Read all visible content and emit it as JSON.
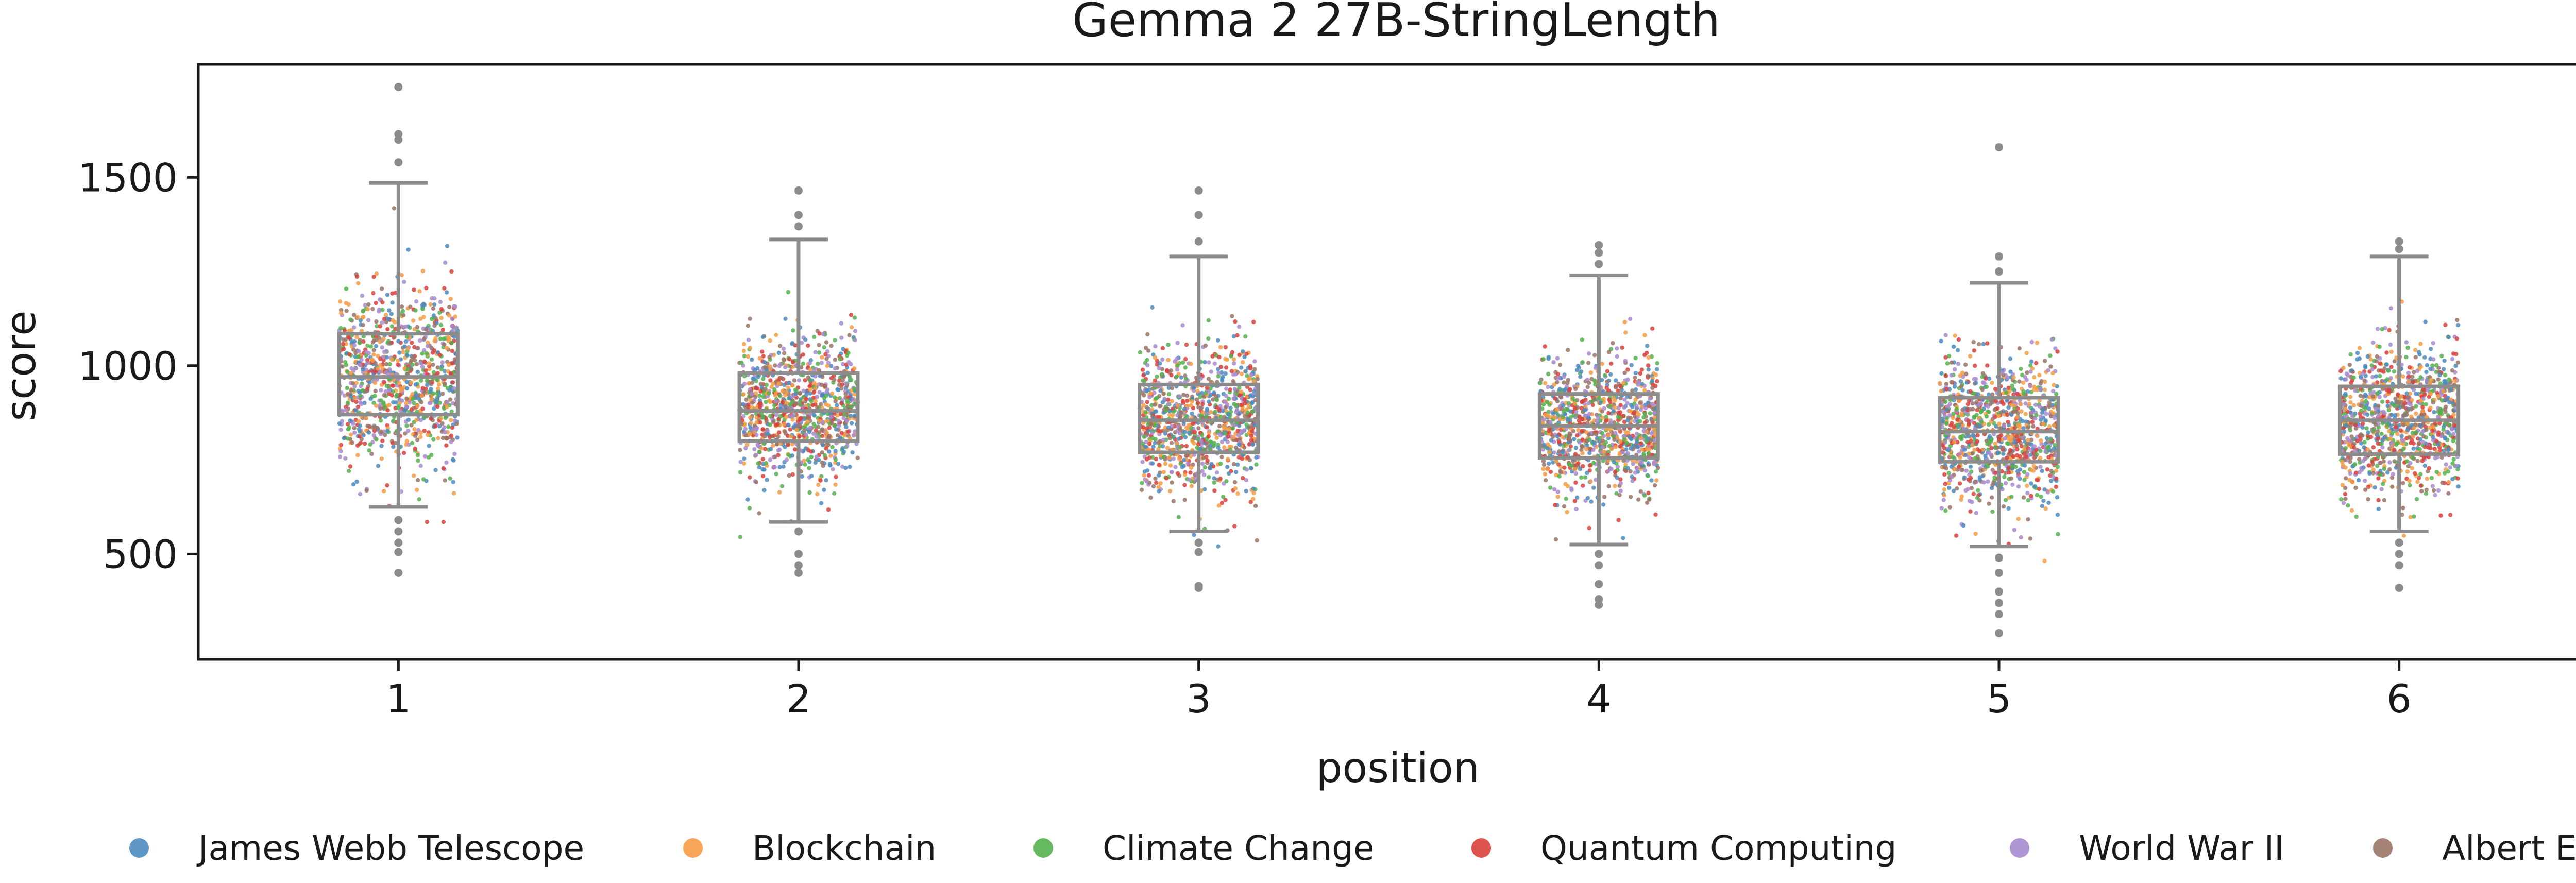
{
  "chart_data": {
    "type": "box-strip",
    "title": "Gemma 2 27B-StringLength",
    "xlabel": "position",
    "ylabel": "score",
    "categories": [
      "1",
      "2",
      "3",
      "4",
      "5",
      "6"
    ],
    "ylim": [
      220,
      1800
    ],
    "yticks": [
      500,
      1000,
      1500
    ],
    "legend_placement": "bottom",
    "grid": false,
    "colors": {
      "box": "#8c8c8c",
      "axes": "#1a1a1a",
      "series": [
        "#4c8bbf",
        "#f59c44",
        "#54b24f",
        "#d9413c",
        "#a98bd0",
        "#9a7467"
      ]
    },
    "series": [
      {
        "name": "James Webb Telescope"
      },
      {
        "name": "Blockchain"
      },
      {
        "name": "Climate Change"
      },
      {
        "name": "Quantum Computing"
      },
      {
        "name": "World War II"
      },
      {
        "name": "Albert Einstein"
      }
    ],
    "boxes": [
      {
        "position": "1",
        "q1": 870,
        "median": 970,
        "q3": 1085,
        "whisker_low": 625,
        "whisker_high": 1485,
        "outliers": [
          590,
          560,
          530,
          505,
          450,
          1540,
          1600,
          1615,
          1740
        ]
      },
      {
        "position": "2",
        "q1": 800,
        "median": 880,
        "q3": 980,
        "whisker_low": 585,
        "whisker_high": 1335,
        "outliers": [
          560,
          500,
          470,
          450,
          1370,
          1400,
          1465
        ]
      },
      {
        "position": "3",
        "q1": 770,
        "median": 855,
        "q3": 950,
        "whisker_low": 560,
        "whisker_high": 1290,
        "outliers": [
          530,
          505,
          415,
          410,
          1330,
          1400,
          1465
        ]
      },
      {
        "position": "4",
        "q1": 755,
        "median": 840,
        "q3": 925,
        "whisker_low": 525,
        "whisker_high": 1240,
        "outliers": [
          500,
          470,
          420,
          380,
          365,
          1270,
          1300,
          1320
        ]
      },
      {
        "position": "5",
        "q1": 745,
        "median": 825,
        "q3": 915,
        "whisker_low": 520,
        "whisker_high": 1220,
        "outliers": [
          490,
          450,
          400,
          370,
          340,
          290,
          1250,
          1290,
          1580
        ]
      },
      {
        "position": "6",
        "q1": 765,
        "median": 855,
        "q3": 945,
        "whisker_low": 560,
        "whisker_high": 1290,
        "outliers": [
          530,
          500,
          470,
          410,
          1310,
          1330
        ]
      }
    ],
    "strip": {
      "points_per_position": 1000,
      "spread": [
        115,
        95,
        95,
        90,
        100,
        95
      ]
    }
  }
}
